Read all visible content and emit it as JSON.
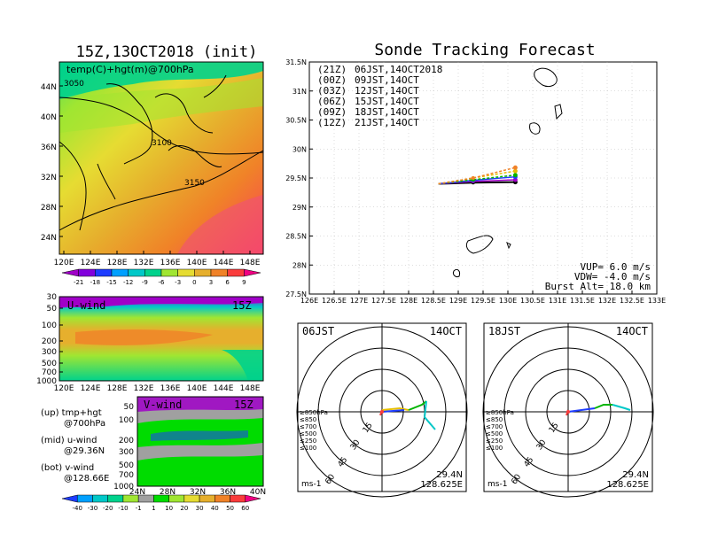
{
  "left": {
    "title": "15Z,13OCT2018 (init)",
    "map_label": "temp(C)+hgt(m)@700hPa",
    "contours": [
      "3050",
      "3100",
      "3150"
    ],
    "lat_ticks": [
      "44N",
      "40N",
      "36N",
      "32N",
      "28N",
      "24N"
    ],
    "lon_ticks": [
      "120E",
      "124E",
      "128E",
      "132E",
      "136E",
      "140E",
      "144E",
      "148E"
    ],
    "temp_colorbar": {
      "labels": [
        "-21",
        "-18",
        "-15",
        "-12",
        "-9",
        "-6",
        "-3",
        "0",
        "3",
        "6",
        "9"
      ],
      "colors": [
        "#a000c8",
        "#8200dc",
        "#1e3cff",
        "#00a0ff",
        "#00c8c8",
        "#00d28c",
        "#a0e632",
        "#e6dc32",
        "#e6af2d",
        "#f08228",
        "#fa3c3c",
        "#f00082"
      ]
    },
    "uwind": {
      "label": "U-wind",
      "time": "15Z",
      "p_ticks": [
        "30",
        "50",
        "100",
        "200",
        "300",
        "500",
        "700",
        "1000"
      ]
    },
    "vwind": {
      "label": "V-wind",
      "time": "15Z",
      "p_ticks": [
        "50",
        "100",
        "200",
        "300",
        "500",
        "700",
        "1000"
      ],
      "lat_ticks": [
        "24N",
        "28N",
        "32N",
        "36N",
        "40N"
      ]
    },
    "notes": [
      {
        "a": "(up) tmp+hgt",
        "b": "@700hPa"
      },
      {
        "a": "(mid) u-wind",
        "b": "@29.36N"
      },
      {
        "a": "(bot) v-wind",
        "b": "@128.66E"
      }
    ],
    "wind_colorbar": {
      "labels": [
        "-40",
        "-30",
        "-20",
        "-10",
        "-1",
        "1",
        "10",
        "20",
        "30",
        "40",
        "50",
        "60"
      ],
      "colors": [
        "#1e3cff",
        "#00a0ff",
        "#00c8c8",
        "#00d28c",
        "#a0e632",
        "#a0a0a0",
        "#00dc00",
        "#a0e632",
        "#e6dc32",
        "#e6af2d",
        "#f08228",
        "#fa3c3c",
        "#f00082"
      ]
    }
  },
  "right": {
    "title": "Sonde Tracking Forecast",
    "legend": [
      {
        "code": "(21Z)",
        "text": "06JST,14OCT2018",
        "color": "#000000"
      },
      {
        "code": "(00Z)",
        "text": "09JST,14OCT",
        "color": "#a000c8"
      },
      {
        "code": "(03Z)",
        "text": "12JST,14OCT",
        "color": "#1e3cff"
      },
      {
        "code": "(06Z)",
        "text": "15JST,14OCT",
        "color": "#00b400"
      },
      {
        "code": "(09Z)",
        "text": "18JST,14OCT",
        "color": "#e6be00"
      },
      {
        "code": "(12Z)",
        "text": "21JST,14OCT",
        "color": "#f08228"
      }
    ],
    "lat_ticks": [
      "31.5N",
      "31N",
      "30.5N",
      "30N",
      "29.5N",
      "29N",
      "28.5N",
      "28N",
      "27.5N"
    ],
    "lon_ticks": [
      "126E",
      "126.5E",
      "127E",
      "127.5E",
      "128E",
      "128.5E",
      "129E",
      "129.5E",
      "130E",
      "130.5E",
      "131E",
      "131.5E",
      "132E",
      "132.5E",
      "133E"
    ],
    "params": [
      "VUP=  6.0 m/s",
      "VDW= -4.0 m/s",
      "Burst Alt= 18.0 km"
    ],
    "hodographs": [
      {
        "time": "06JST",
        "date": "14OCT",
        "lat": "29.4N",
        "lon": "128.625E"
      },
      {
        "time": "18JST",
        "date": "14OCT",
        "lat": "29.4N",
        "lon": "128.625E"
      }
    ],
    "ring_labels": [
      "15",
      "30",
      "45",
      "60"
    ],
    "pressure_legend": [
      {
        "text": "≥850hPa",
        "color": "#fa3c3c"
      },
      {
        "text": "≤850",
        "color": "#f08228"
      },
      {
        "text": "≤700",
        "color": "#e6be00"
      },
      {
        "text": "≤500",
        "color": "#00b400"
      },
      {
        "text": "≤250",
        "color": "#00c8c8"
      },
      {
        "text": "≤100",
        "color": "#1e3cff"
      }
    ],
    "unit": "ms-1"
  },
  "chart_data": [
    {
      "type": "line",
      "title": "Sonde Tracking Forecast",
      "xlabel": "",
      "ylabel": "",
      "xlim": [
        126,
        133
      ],
      "ylim": [
        27.5,
        31.5
      ],
      "series": [
        {
          "name": "06JST,14OCT2018",
          "color": "#000000",
          "x": [
            128.6,
            129.3,
            130.15
          ],
          "y": [
            29.4,
            29.42,
            29.43
          ]
        },
        {
          "name": "09JST,14OCT",
          "color": "#a000c8",
          "x": [
            128.6,
            129.3,
            130.15
          ],
          "y": [
            29.4,
            29.44,
            29.47
          ]
        },
        {
          "name": "12JST,14OCT",
          "color": "#1e3cff",
          "x": [
            128.6,
            129.3,
            130.15
          ],
          "y": [
            29.4,
            29.46,
            29.52
          ]
        },
        {
          "name": "15JST,14OCT",
          "color": "#00b400",
          "x": [
            128.6,
            129.3,
            130.15
          ],
          "y": [
            29.4,
            29.47,
            29.55
          ]
        },
        {
          "name": "18JST,14OCT",
          "color": "#e6be00",
          "x": [
            128.6,
            129.3,
            130.15
          ],
          "y": [
            29.4,
            29.5,
            29.62
          ]
        },
        {
          "name": "21JST,14OCT",
          "color": "#f08228",
          "x": [
            128.6,
            129.3,
            130.15
          ],
          "y": [
            29.4,
            29.5,
            29.68
          ]
        }
      ]
    }
  ]
}
